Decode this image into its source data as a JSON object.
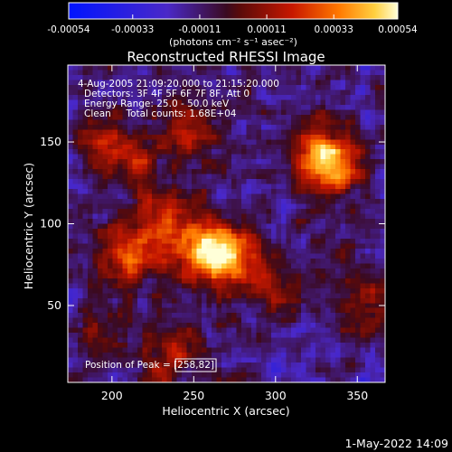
{
  "chart_data": {
    "type": "heatmap",
    "title": "Reconstructed RHESSI Image",
    "xlabel": "Heliocentric X (arcsec)",
    "ylabel": "Heliocentric Y (arcsec)",
    "xlim": [
      173,
      367
    ],
    "ylim": [
      3,
      197
    ],
    "x_ticks": [
      200,
      250,
      300,
      350
    ],
    "y_ticks": [
      50,
      100,
      150
    ],
    "colorbar": {
      "range": [
        -0.00054,
        0.00054
      ],
      "tick_values": [
        -0.00054,
        -0.00033,
        -0.00011,
        0.00011,
        0.00033,
        0.00054
      ],
      "tick_labels": [
        "-0.00054",
        "-0.00033",
        "-0.00011",
        "0.00011",
        "0.00033",
        "0.00054"
      ],
      "unit_label": "(photons cm⁻² s⁻¹ asec⁻²)"
    },
    "annotations": [
      "4-Aug-2005 21:09:20.000 to 21:15:20.000",
      "Detectors: 3F 4F 5F 6F 7F 8F, Att 0",
      "Energy Range: 25.0 - 50.0 keV",
      "Clean     Total counts: 1.68E+04"
    ],
    "peak_label": "Position of Peak = [258,82]",
    "peak": [
      258,
      82
    ],
    "sources": [
      {
        "x": 258,
        "y": 85,
        "peak": 0.00054
      },
      {
        "x": 232,
        "y": 100,
        "peak": 0.00036
      },
      {
        "x": 275,
        "y": 78,
        "peak": 0.00033
      },
      {
        "x": 210,
        "y": 80,
        "peak": 0.0003
      },
      {
        "x": 335,
        "y": 135,
        "peak": 0.00042
      },
      {
        "x": 325,
        "y": 145,
        "peak": 0.0003
      },
      {
        "x": 250,
        "y": 155,
        "peak": 0.00025
      },
      {
        "x": 215,
        "y": 140,
        "peak": 0.00022
      },
      {
        "x": 195,
        "y": 150,
        "peak": 0.0002
      },
      {
        "x": 240,
        "y": 20,
        "peak": 0.00025
      },
      {
        "x": 300,
        "y": 60,
        "peak": 0.0002
      },
      {
        "x": 350,
        "y": 55,
        "peak": 0.00022
      },
      {
        "x": 195,
        "y": 35,
        "peak": 0.00015
      }
    ],
    "timestamp": "1-May-2022 14:09"
  }
}
